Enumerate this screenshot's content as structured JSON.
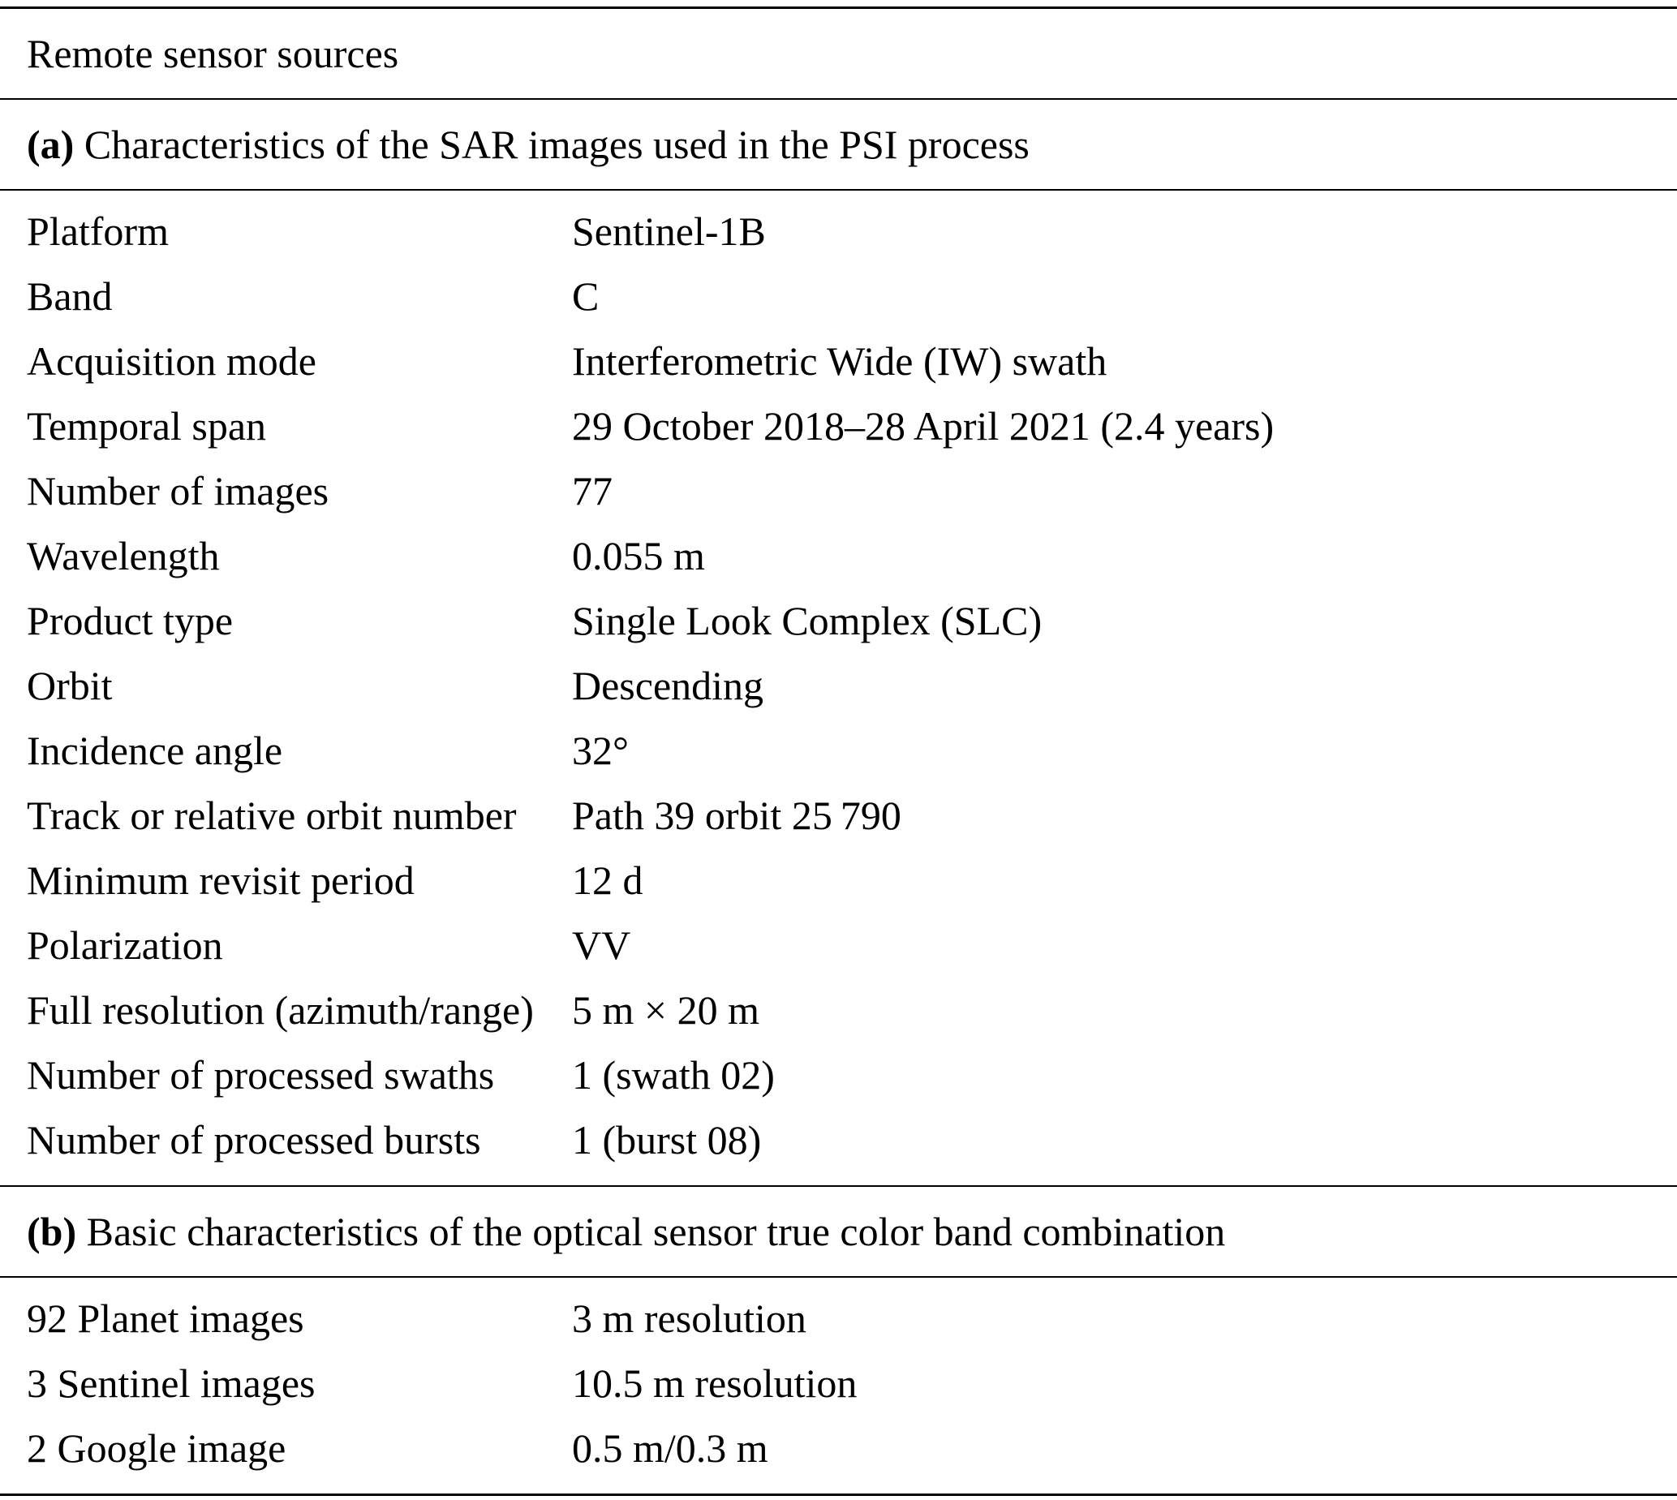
{
  "title": "Remote sensor sources",
  "sections": [
    {
      "label": "(a)",
      "heading": "Characteristics of the SAR images used in the PSI process",
      "rows": [
        {
          "key": "Platform",
          "value": "Sentinel-1B"
        },
        {
          "key": "Band",
          "value": "C"
        },
        {
          "key": "Acquisition mode",
          "value": "Interferometric Wide (IW) swath"
        },
        {
          "key": "Temporal span",
          "value": "29 October 2018–28 April 2021 (2.4 years)"
        },
        {
          "key": "Number of images",
          "value": "77"
        },
        {
          "key": "Wavelength",
          "value": "0.055 m"
        },
        {
          "key": "Product type",
          "value": "Single Look Complex (SLC)"
        },
        {
          "key": "Orbit",
          "value": "Descending"
        },
        {
          "key": "Incidence angle",
          "value": "32°"
        },
        {
          "key": "Track or relative orbit number",
          "value": "Path 39 orbit 25 790"
        },
        {
          "key": "Minimum revisit period",
          "value": "12 d"
        },
        {
          "key": "Polarization",
          "value": "VV"
        },
        {
          "key": "Full resolution (azimuth/range)",
          "value": "5 m × 20 m"
        },
        {
          "key": "Number of processed swaths",
          "value": "1 (swath 02)"
        },
        {
          "key": "Number of processed bursts",
          "value": "1 (burst 08)"
        }
      ]
    },
    {
      "label": "(b)",
      "heading": "Basic characteristics of the optical sensor true color band combination",
      "rows": [
        {
          "key": "92 Planet images",
          "value": "3 m resolution"
        },
        {
          "key": "3 Sentinel images",
          "value": "10.5 m resolution"
        },
        {
          "key": "2 Google image",
          "value": "0.5 m/0.3 m"
        }
      ]
    }
  ]
}
